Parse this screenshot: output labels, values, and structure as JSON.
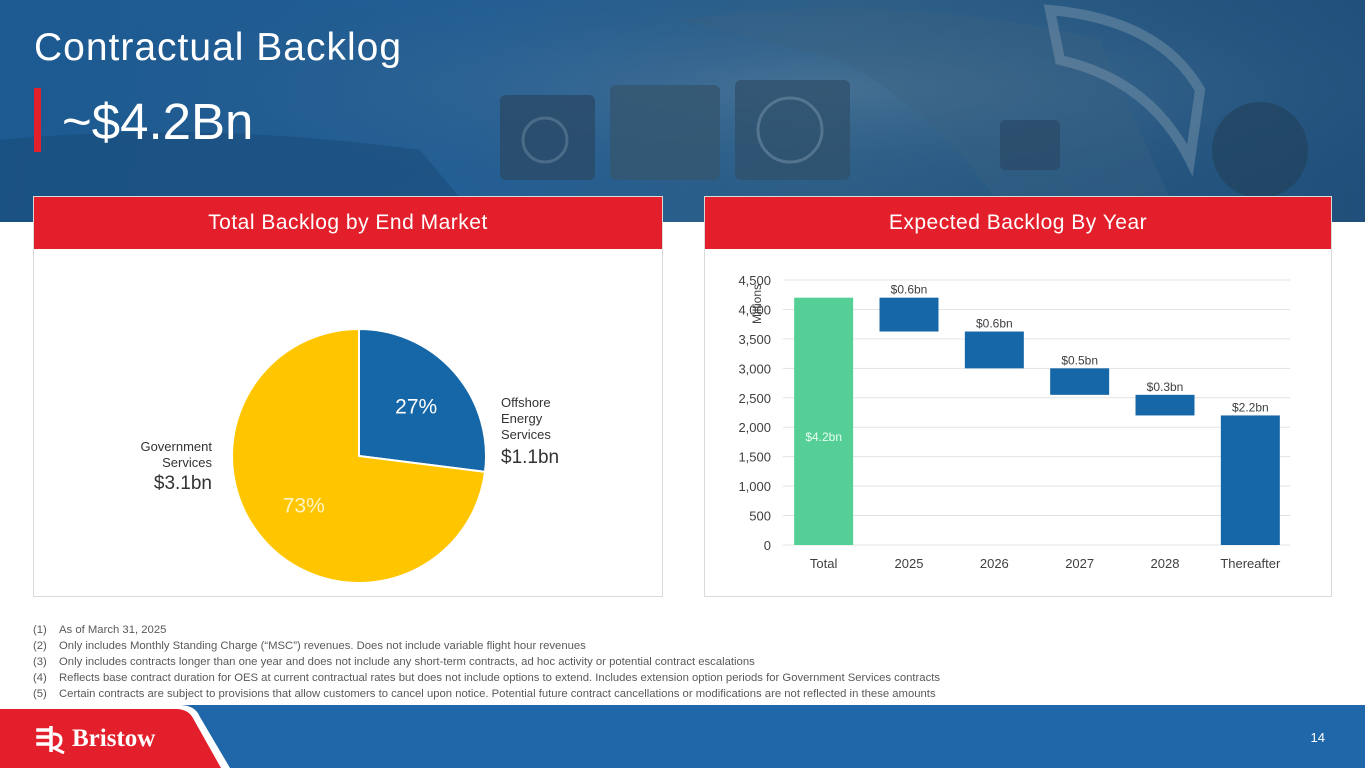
{
  "header": {
    "title": "Contractual Backlog",
    "value": "~$4.2Bn"
  },
  "left_panel": {
    "title": "Total Backlog by End Market"
  },
  "right_panel": {
    "title": "Expected Backlog By Year"
  },
  "chart_data": [
    {
      "type": "pie",
      "slices": [
        {
          "name": "Offshore Energy Services",
          "label_lines": [
            "Offshore",
            "Energy",
            "Services"
          ],
          "percent": 27,
          "percent_label": "27%",
          "amount_label": "$1.1bn",
          "color": "#1667a8"
        },
        {
          "name": "Government Services",
          "label_lines": [
            "Government",
            "Services"
          ],
          "percent": 73,
          "percent_label": "73%",
          "amount_label": "$3.1bn",
          "color": "#ffc600"
        }
      ]
    },
    {
      "type": "bar",
      "subtype": "waterfall",
      "ylabel": "Millions",
      "ylim": [
        0,
        4500
      ],
      "yticks": [
        0,
        500,
        1000,
        1500,
        2000,
        2500,
        3000,
        3500,
        4000,
        4500
      ],
      "ytick_labels": [
        "0",
        "500",
        "1,000",
        "1,500",
        "2,000",
        "2,500",
        "3,000",
        "3,500",
        "4,000",
        "4,500"
      ],
      "grid": true,
      "categories": [
        "Total",
        "2025",
        "2026",
        "2027",
        "2028",
        "Thereafter"
      ],
      "bars": [
        {
          "category": "Total",
          "start": 0,
          "end": 4200,
          "label": "$4.2bn",
          "color": "#55cf95",
          "label_inside": true
        },
        {
          "category": "2025",
          "start": 3625,
          "end": 4200,
          "label": "$0.6bn",
          "color": "#1667a8"
        },
        {
          "category": "2026",
          "start": 3000,
          "end": 3625,
          "label": "$0.6bn",
          "color": "#1667a8"
        },
        {
          "category": "2027",
          "start": 2550,
          "end": 3000,
          "label": "$0.5bn",
          "color": "#1667a8"
        },
        {
          "category": "2028",
          "start": 2200,
          "end": 2550,
          "label": "$0.3bn",
          "color": "#1667a8"
        },
        {
          "category": "Thereafter",
          "start": 0,
          "end": 2200,
          "label": "$2.2bn",
          "color": "#1667a8"
        }
      ]
    }
  ],
  "footnotes": [
    {
      "num": "(1)",
      "text": "As of March 31, 2025"
    },
    {
      "num": "(2)",
      "text": "Only includes Monthly Standing Charge (“MSC”) revenues. Does not include variable flight hour revenues"
    },
    {
      "num": "(3)",
      "text": "Only includes contracts longer than one year and does not include any short-term contracts, ad hoc activity or potential contract escalations"
    },
    {
      "num": "(4)",
      "text": "Reflects base contract duration for OES at current contractual rates but does not include options to extend. Includes extension option periods for Government Services contracts"
    },
    {
      "num": "(5)",
      "text": "Certain contracts are subject to provisions that allow customers to cancel upon notice. Potential future contract cancellations or modifications are not reflected in these amounts"
    }
  ],
  "footer": {
    "logo_text": "Bristow",
    "logo_icon": "bristow-logo-icon",
    "page_number": "14"
  },
  "colors": {
    "brand_red": "#e31f2b",
    "brand_blue": "#1f67a9",
    "pie_blue": "#1667a8",
    "pie_yellow": "#ffc600",
    "total_green": "#55cf95"
  }
}
